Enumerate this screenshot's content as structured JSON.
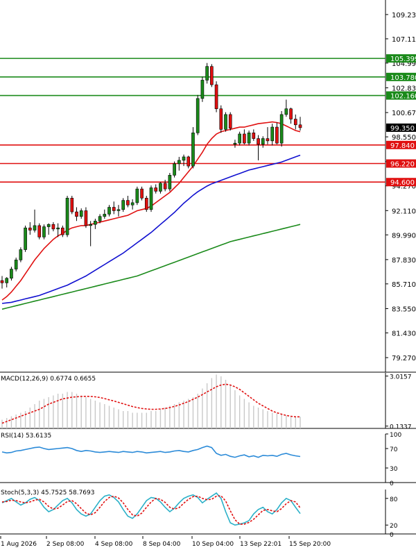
{
  "chart_data": [
    {
      "id": "price",
      "type": "candlestick",
      "title": "",
      "x_ticks": [
        "1 Aug 2026",
        "2 Sep 08:00",
        "4 Sep 08:00",
        "8 Sep 04:00",
        "10 Sep 04:00",
        "13 Sep 22:01",
        "15 Sep 20:00"
      ],
      "y_ticks": [
        "109.230",
        "107.110",
        "104.990",
        "102.830",
        "100.670",
        "98.550",
        "96.390",
        "94.270",
        "92.110",
        "89.990",
        "87.830",
        "85.710",
        "83.550",
        "81.430",
        "79.270"
      ],
      "ylim": [
        78.0,
        110.5
      ],
      "current_price": "99.350",
      "candles": [
        [
          86.0,
          86.4,
          85.3,
          85.8
        ],
        [
          85.8,
          86.3,
          85.4,
          86.2
        ],
        [
          86.2,
          87.2,
          86.0,
          87.0
        ],
        [
          87.0,
          88.0,
          86.8,
          87.8
        ],
        [
          87.8,
          88.9,
          87.6,
          88.7
        ],
        [
          88.7,
          90.8,
          88.5,
          90.6
        ],
        [
          90.6,
          91.1,
          90.0,
          90.4
        ],
        [
          90.4,
          92.2,
          90.2,
          90.8
        ],
        [
          90.8,
          91.0,
          89.6,
          89.8
        ],
        [
          89.8,
          90.9,
          89.6,
          90.7
        ],
        [
          90.7,
          91.0,
          90.0,
          90.9
        ],
        [
          90.9,
          91.1,
          90.3,
          90.5
        ],
        [
          90.5,
          91.0,
          89.8,
          90.6
        ],
        [
          90.6,
          90.8,
          89.8,
          90.0
        ],
        [
          90.0,
          93.4,
          89.8,
          93.2
        ],
        [
          93.2,
          93.4,
          91.8,
          92.0
        ],
        [
          92.0,
          92.4,
          91.2,
          91.6
        ],
        [
          91.6,
          92.3,
          91.4,
          92.1
        ],
        [
          92.1,
          92.4,
          90.6,
          90.8
        ],
        [
          90.8,
          91.2,
          89.0,
          90.9
        ],
        [
          90.9,
          91.4,
          90.5,
          91.2
        ],
        [
          91.2,
          91.8,
          91.0,
          91.6
        ],
        [
          91.6,
          92.2,
          91.4,
          91.8
        ],
        [
          91.8,
          92.6,
          91.6,
          92.4
        ],
        [
          92.4,
          92.9,
          91.8,
          92.1
        ],
        [
          92.1,
          92.6,
          91.6,
          92.2
        ],
        [
          92.2,
          93.2,
          92.0,
          93.0
        ],
        [
          93.0,
          93.4,
          92.4,
          92.6
        ],
        [
          92.6,
          93.1,
          92.2,
          92.8
        ],
        [
          92.8,
          94.2,
          92.6,
          94.0
        ],
        [
          94.0,
          94.2,
          93.0,
          93.2
        ],
        [
          93.2,
          93.4,
          92.0,
          92.2
        ],
        [
          92.2,
          94.3,
          92.0,
          94.1
        ],
        [
          94.1,
          94.4,
          93.6,
          93.8
        ],
        [
          93.8,
          94.6,
          93.6,
          94.5
        ],
        [
          94.5,
          94.8,
          93.8,
          94.0
        ],
        [
          94.0,
          95.4,
          93.8,
          95.2
        ],
        [
          95.2,
          96.4,
          95.0,
          96.2
        ],
        [
          96.2,
          96.8,
          95.6,
          96.5
        ],
        [
          96.5,
          97.0,
          96.0,
          96.8
        ],
        [
          96.8,
          96.9,
          95.8,
          96.0
        ],
        [
          96.0,
          99.4,
          95.8,
          98.9
        ],
        [
          98.9,
          102.2,
          98.7,
          101.9
        ],
        [
          101.9,
          103.8,
          101.6,
          103.5
        ],
        [
          103.5,
          105.0,
          103.2,
          104.7
        ],
        [
          104.7,
          104.9,
          102.9,
          103.1
        ],
        [
          103.1,
          103.4,
          100.7,
          101.0
        ],
        [
          101.0,
          101.3,
          98.9,
          99.2
        ],
        [
          99.2,
          100.7,
          99.0,
          100.5
        ],
        [
          100.5,
          100.7,
          99.1,
          99.3
        ],
        [
          97.9,
          98.3,
          97.6,
          98.0
        ],
        [
          98.0,
          99.0,
          97.8,
          98.8
        ],
        [
          98.8,
          99.2,
          97.9,
          98.0
        ],
        [
          98.0,
          99.1,
          97.8,
          98.9
        ],
        [
          98.9,
          99.2,
          98.2,
          98.4
        ],
        [
          98.4,
          98.7,
          96.5,
          97.9
        ],
        [
          97.9,
          98.6,
          97.6,
          98.4
        ],
        [
          98.4,
          99.4,
          97.9,
          98.2
        ],
        [
          98.2,
          99.7,
          97.8,
          99.4
        ],
        [
          99.4,
          99.8,
          97.9,
          98.0
        ],
        [
          98.0,
          100.8,
          97.7,
          100.5
        ],
        [
          100.5,
          101.8,
          100.3,
          101.0
        ],
        [
          101.0,
          101.1,
          99.7,
          100.1
        ],
        [
          100.1,
          100.5,
          99.2,
          99.6
        ],
        [
          99.6,
          100.3,
          99.1,
          99.35
        ]
      ],
      "ma_red": [
        84.3,
        84.6,
        85.0,
        85.5,
        86.0,
        86.6,
        87.2,
        87.8,
        88.3,
        88.8,
        89.2,
        89.6,
        89.9,
        90.1,
        90.4,
        90.6,
        90.7,
        90.8,
        90.8,
        90.9,
        91.0,
        91.1,
        91.2,
        91.3,
        91.4,
        91.5,
        91.6,
        91.7,
        91.9,
        92.1,
        92.2,
        92.3,
        92.5,
        92.8,
        93.1,
        93.4,
        93.7,
        94.1,
        94.5,
        95.0,
        95.5,
        96.0,
        96.6,
        97.2,
        97.9,
        98.4,
        98.8,
        99.0,
        99.1,
        99.2,
        99.3,
        99.4,
        99.4,
        99.5,
        99.6,
        99.7,
        99.75,
        99.8,
        99.85,
        99.8,
        99.7,
        99.5,
        99.3,
        99.1,
        99.0
      ],
      "ma_blue": [
        84.0,
        84.05,
        84.1,
        84.2,
        84.3,
        84.4,
        84.5,
        84.6,
        84.7,
        84.85,
        85.0,
        85.15,
        85.3,
        85.45,
        85.6,
        85.8,
        86.0,
        86.2,
        86.4,
        86.65,
        86.9,
        87.15,
        87.4,
        87.65,
        87.9,
        88.15,
        88.4,
        88.7,
        89.0,
        89.3,
        89.6,
        89.9,
        90.2,
        90.55,
        90.9,
        91.25,
        91.6,
        91.95,
        92.35,
        92.75,
        93.1,
        93.45,
        93.75,
        94.0,
        94.25,
        94.45,
        94.6,
        94.75,
        94.9,
        95.05,
        95.2,
        95.35,
        95.5,
        95.65,
        95.75,
        95.85,
        95.95,
        96.05,
        96.15,
        96.25,
        96.35,
        96.5,
        96.65,
        96.8,
        96.95
      ],
      "ma_green": [
        83.5,
        83.6,
        83.7,
        83.8,
        83.9,
        84.0,
        84.1,
        84.2,
        84.3,
        84.4,
        84.5,
        84.6,
        84.7,
        84.8,
        84.9,
        85.0,
        85.1,
        85.2,
        85.3,
        85.4,
        85.5,
        85.6,
        85.7,
        85.8,
        85.9,
        86.0,
        86.1,
        86.2,
        86.3,
        86.4,
        86.55,
        86.7,
        86.85,
        87.0,
        87.15,
        87.3,
        87.45,
        87.6,
        87.75,
        87.9,
        88.05,
        88.2,
        88.35,
        88.5,
        88.65,
        88.8,
        88.95,
        89.1,
        89.25,
        89.4,
        89.5,
        89.6,
        89.7,
        89.8,
        89.9,
        90.0,
        90.1,
        90.2,
        90.3,
        90.4,
        90.5,
        90.6,
        90.7,
        90.8,
        90.9
      ],
      "levels": [
        {
          "value": 105.399,
          "label": "105.399",
          "color": "#1a8a1a"
        },
        {
          "value": 103.78,
          "label": "103.780",
          "color": "#1a8a1a"
        },
        {
          "value": 102.16,
          "label": "102.160",
          "color": "#1a8a1a"
        },
        {
          "value": 97.84,
          "label": "97.840",
          "color": "#e01010"
        },
        {
          "value": 96.22,
          "label": "96.220",
          "color": "#e01010"
        },
        {
          "value": 94.6,
          "label": "94.600",
          "color": "#e01010"
        }
      ],
      "colors": {
        "up": "#1a8a1a",
        "down": "#e01010",
        "ma_red": "#e01010",
        "ma_blue": "#1010d0",
        "ma_green": "#1a8a1a"
      }
    },
    {
      "id": "macd",
      "type": "bar",
      "label": "MACD(12,26,9) 0.6774 0.6655",
      "y_ticks": [
        "3.0157",
        "0.1337"
      ],
      "ylim": [
        0,
        3.2
      ],
      "hist": [
        0.5,
        0.6,
        0.7,
        0.8,
        0.9,
        1.0,
        1.2,
        1.4,
        1.6,
        1.7,
        1.8,
        1.9,
        2.0,
        2.0,
        2.1,
        2.1,
        2.0,
        1.9,
        1.8,
        1.7,
        1.6,
        1.5,
        1.4,
        1.3,
        1.2,
        1.1,
        1.0,
        1.0,
        0.9,
        0.9,
        0.9,
        0.9,
        1.0,
        1.0,
        1.1,
        1.2,
        1.3,
        1.4,
        1.5,
        1.6,
        1.7,
        1.8,
        2.0,
        2.3,
        2.6,
        2.9,
        3.1,
        3.0,
        2.8,
        2.5,
        2.2,
        1.9,
        1.7,
        1.5,
        1.3,
        1.2,
        1.1,
        1.0,
        0.9,
        0.85,
        0.8,
        0.75,
        0.7,
        0.68,
        0.68
      ],
      "signal": [
        0.3,
        0.4,
        0.5,
        0.6,
        0.7,
        0.8,
        0.9,
        1.0,
        1.1,
        1.25,
        1.4,
        1.5,
        1.6,
        1.7,
        1.75,
        1.8,
        1.82,
        1.84,
        1.85,
        1.84,
        1.82,
        1.78,
        1.72,
        1.65,
        1.58,
        1.5,
        1.42,
        1.34,
        1.26,
        1.2,
        1.15,
        1.12,
        1.1,
        1.1,
        1.12,
        1.15,
        1.2,
        1.27,
        1.35,
        1.45,
        1.55,
        1.68,
        1.8,
        1.95,
        2.1,
        2.25,
        2.4,
        2.5,
        2.55,
        2.5,
        2.4,
        2.25,
        2.05,
        1.85,
        1.65,
        1.45,
        1.3,
        1.15,
        1.0,
        0.9,
        0.82,
        0.75,
        0.7,
        0.67,
        0.67
      ],
      "colors": {
        "hist": "#c8c8c8",
        "signal": "#e01010"
      }
    },
    {
      "id": "rsi",
      "type": "line",
      "label": "RSI(14) 53.6135",
      "y_ticks": [
        "100",
        "70",
        "30",
        "0"
      ],
      "ylim": [
        0,
        100
      ],
      "values": [
        63,
        61,
        62,
        65,
        66,
        68,
        70,
        72,
        73,
        70,
        68,
        69,
        70,
        71,
        72,
        70,
        66,
        64,
        66,
        65,
        63,
        62,
        63,
        64,
        63,
        62,
        64,
        63,
        62,
        64,
        63,
        61,
        62,
        63,
        64,
        62,
        63,
        65,
        66,
        64,
        63,
        66,
        68,
        72,
        75,
        72,
        60,
        56,
        58,
        54,
        52,
        55,
        57,
        53,
        55,
        52,
        56,
        55,
        56,
        54,
        58,
        60,
        57,
        55,
        53.6
      ],
      "color": "#2a8ad8"
    },
    {
      "id": "stoch",
      "type": "line",
      "label": "Stoch(5,3,3) 45.7525 58.7693",
      "y_ticks": [
        "80",
        "20",
        "0"
      ],
      "ylim": [
        0,
        100
      ],
      "k": [
        70,
        75,
        80,
        72,
        65,
        70,
        78,
        82,
        75,
        60,
        50,
        55,
        65,
        75,
        80,
        70,
        55,
        45,
        40,
        45,
        60,
        75,
        85,
        88,
        82,
        72,
        55,
        40,
        35,
        45,
        60,
        75,
        82,
        80,
        72,
        60,
        50,
        58,
        70,
        80,
        85,
        88,
        82,
        70,
        78,
        85,
        92,
        80,
        50,
        25,
        20,
        22,
        25,
        30,
        45,
        55,
        60,
        50,
        45,
        55,
        70,
        80,
        75,
        60,
        45.75
      ],
      "d": [
        72,
        73,
        76,
        75,
        72,
        70,
        72,
        76,
        78,
        72,
        62,
        56,
        58,
        65,
        73,
        75,
        68,
        57,
        47,
        43,
        48,
        60,
        73,
        82,
        85,
        81,
        70,
        55,
        43,
        40,
        47,
        60,
        72,
        80,
        78,
        71,
        60,
        56,
        59,
        69,
        78,
        84,
        85,
        80,
        77,
        78,
        85,
        86,
        74,
        52,
        32,
        22,
        22,
        26,
        33,
        43,
        53,
        55,
        52,
        50,
        57,
        68,
        75,
        72,
        58.77
      ],
      "colors": {
        "k": "#2ab0c8",
        "d": "#e01010"
      }
    }
  ]
}
